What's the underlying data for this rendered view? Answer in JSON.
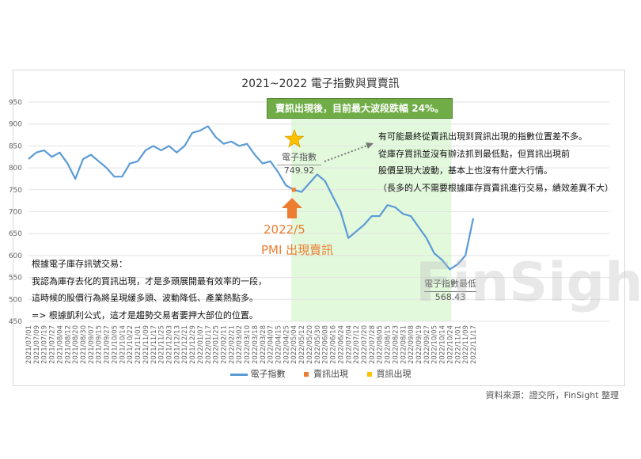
{
  "title": "2021~2022 電子指數與買賣訊",
  "highlight_box": "賣訊出現後，目前最大波段跌幅 24%。",
  "right_note": [
    "有可能最終從賣訊出現到買訊出現的指數位置差不多。",
    "從庫存買訊並沒有辦法抓到最低點，但買訊出現前",
    "股價呈現大波動，基本上也沒有什麼大行情。",
    "（長多的人不需要根據庫存買賣訊進行交易，績效差異不大）"
  ],
  "left_note": [
    "根據電子庫存訊號交易：",
    "我認為庫存去化的買訊出現，才是多頭展開最有效率的一段，",
    "這時候的股價行為將呈現緩多頭、波動降低、產業熱點多。",
    "=> 根據凱利公式，這才是趨勢交易者要押大部位的位置。"
  ],
  "sell_label": {
    "line1": "2022/5",
    "line2": "PMI 出現賣訊"
  },
  "sell_callout": {
    "name": "電子指數",
    "value": "749.92"
  },
  "low_callout": {
    "name": "電子指數最低",
    "value": "568.43"
  },
  "source": "資料來源：證交所，FinSight 整理",
  "watermark": "FinSight",
  "colors": {
    "line": "#5B9BD5",
    "sell": "#ED7D31",
    "buy": "#FFC000",
    "band": "#E2F9DC",
    "box": "#70AD47"
  },
  "icons": {
    "star": "star-icon",
    "arrow": "up-arrow-icon"
  },
  "chart_data": {
    "type": "line",
    "title": "2021~2022 電子指數與買賣訊",
    "ylim": [
      450,
      950
    ],
    "yticks": [
      450,
      500,
      550,
      600,
      650,
      700,
      750,
      800,
      850,
      900,
      950
    ],
    "grid": true,
    "legend_position": "bottom",
    "x": [
      "2021/07/01",
      "2021/07/09",
      "2021/07/19",
      "2021/07/27",
      "2021/08/04",
      "2021/08/12",
      "2021/08/20",
      "2021/08/30",
      "2021/09/07",
      "2021/09/15",
      "2021/09/27",
      "2021/10/05",
      "2021/10/14",
      "2021/10/22",
      "2021/11/01",
      "2021/11/09",
      "2021/11/17",
      "2021/11/25",
      "2021/12/03",
      "2021/12/13",
      "2021/12/21",
      "2021/12/29",
      "2022/01/07",
      "2022/01/17",
      "2022/01/25",
      "2022/02/11",
      "2022/02/21",
      "2022/03/02",
      "2022/03/10",
      "2022/03/18",
      "2022/03/28",
      "2022/04/07",
      "2022/04/15",
      "2022/04/25",
      "2022/05/04",
      "2022/05/12",
      "2022/05/20",
      "2022/05/30",
      "2022/06/08",
      "2022/06/16",
      "2022/06/24",
      "2022/07/04",
      "2022/07/12",
      "2022/07/20",
      "2022/07/28",
      "2022/08/05",
      "2022/08/15",
      "2022/08/23",
      "2022/08/31",
      "2022/09/08",
      "2022/09/19",
      "2022/09/27",
      "2022/10/05",
      "2022/10/14",
      "2022/10/24",
      "2022/11/01",
      "2022/11/09",
      "2022/11/17"
    ],
    "series": [
      {
        "name": "電子指數",
        "values": [
          820,
          835,
          840,
          825,
          835,
          810,
          775,
          820,
          830,
          815,
          800,
          780,
          780,
          810,
          815,
          840,
          850,
          840,
          850,
          835,
          850,
          880,
          885,
          895,
          870,
          855,
          860,
          850,
          855,
          830,
          810,
          815,
          790,
          760,
          749.92,
          745,
          765,
          785,
          770,
          735,
          700,
          640,
          655,
          670,
          690,
          690,
          715,
          710,
          695,
          690,
          665,
          640,
          605,
          590,
          568.43,
          580,
          600,
          685
        ]
      },
      {
        "name": "賣訊出現",
        "points": [
          {
            "x": "2022/05/04",
            "y": 749.92
          }
        ]
      },
      {
        "name": "買訊出現",
        "points": []
      }
    ],
    "highlight_range": [
      "2022/05/04",
      "2022/10/24"
    ]
  }
}
